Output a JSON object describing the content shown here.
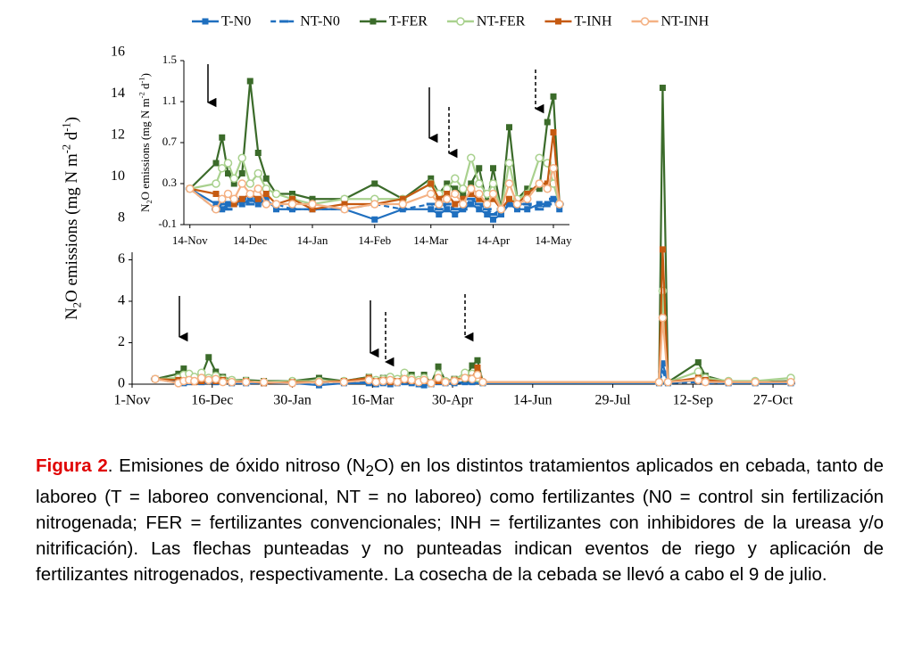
{
  "chart_data": [
    {
      "type": "line",
      "y_label": [
        "N",
        "2",
        "O emissions (mg N m",
        "-2",
        " d",
        "-1",
        ")"
      ],
      "x": [
        13,
        26,
        29,
        32,
        35,
        39,
        43,
        47,
        51,
        56,
        64,
        74,
        90,
        105,
        119,
        133,
        137,
        141,
        145,
        149,
        153,
        157,
        161,
        164,
        168,
        172,
        176,
        181,
        187,
        191,
        194,
        197,
        296,
        298,
        301,
        318,
        322,
        335,
        350,
        370
      ],
      "xlim": [
        0,
        372
      ],
      "xticks": [
        {
          "value": 0,
          "label": "1-Nov"
        },
        {
          "value": 45,
          "label": "16-Dec"
        },
        {
          "value": 90,
          "label": "30-Jan"
        },
        {
          "value": 135,
          "label": "16-Mar"
        },
        {
          "value": 180,
          "label": "30-Apr"
        },
        {
          "value": 225,
          "label": "14-Jun"
        },
        {
          "value": 270,
          "label": "29-Jul"
        },
        {
          "value": 315,
          "label": "12-Sep"
        },
        {
          "value": 360,
          "label": "27-Oct"
        }
      ],
      "ylim": [
        0,
        16
      ],
      "yticks": [
        0,
        2,
        4,
        6,
        8,
        10,
        12,
        14,
        16
      ],
      "series": [
        {
          "name": "T-N0",
          "color": "#1f6fbf",
          "marker": "square",
          "dashed": false,
          "values": [
            0.25,
            0.1,
            0.05,
            0.1,
            0.15,
            0.1,
            0.15,
            0.1,
            0.15,
            0.05,
            0.05,
            0.05,
            0.05,
            -0.05,
            0.05,
            0.05,
            0.0,
            0.05,
            0.0,
            0.05,
            0.1,
            0.05,
            0.0,
            -0.05,
            0.0,
            0.1,
            0.05,
            0.05,
            0.1,
            0.1,
            0.15,
            0.05,
            0.05,
            1.0,
            0.05,
            0.2,
            0.1,
            0.05,
            0.05,
            0.05
          ]
        },
        {
          "name": "NT-N0",
          "color": "#1f6fbf",
          "marker": "dash",
          "dashed": true,
          "values": [
            0.25,
            0.05,
            0.1,
            0.05,
            0.1,
            0.15,
            0.1,
            0.15,
            0.1,
            0.1,
            0.05,
            0.05,
            0.05,
            0.1,
            0.05,
            0.1,
            0.05,
            0.1,
            0.05,
            0.05,
            0.15,
            0.1,
            0.05,
            0.0,
            0.05,
            0.1,
            0.1,
            0.1,
            0.05,
            0.1,
            0.15,
            0.1,
            0.05,
            0.6,
            0.05,
            0.1,
            0.05,
            0.05,
            0.05,
            0.05
          ]
        },
        {
          "name": "T-FER",
          "color": "#3b6b2a",
          "marker": "square",
          "dashed": false,
          "values": [
            0.25,
            0.5,
            0.75,
            0.4,
            0.3,
            0.4,
            1.3,
            0.6,
            0.35,
            0.2,
            0.2,
            0.15,
            0.15,
            0.3,
            0.15,
            0.35,
            0.2,
            0.3,
            0.25,
            0.2,
            0.3,
            0.45,
            0.1,
            0.45,
            0.05,
            0.85,
            0.15,
            0.25,
            0.25,
            0.9,
            1.15,
            0.1,
            0.1,
            14.3,
            0.1,
            1.05,
            0.4,
            0.1,
            0.1,
            0.15
          ]
        },
        {
          "name": "NT-FER",
          "color": "#a9d18e",
          "marker": "circle",
          "dashed": false,
          "values": [
            0.25,
            0.3,
            0.45,
            0.5,
            0.35,
            0.55,
            0.3,
            0.4,
            0.25,
            0.2,
            0.15,
            0.1,
            0.15,
            0.15,
            0.15,
            0.3,
            0.2,
            0.25,
            0.35,
            0.25,
            0.55,
            0.3,
            0.2,
            0.3,
            0.05,
            0.5,
            0.15,
            0.2,
            0.55,
            0.5,
            0.3,
            0.1,
            0.1,
            4.5,
            0.1,
            0.6,
            0.3,
            0.15,
            0.15,
            0.3
          ]
        },
        {
          "name": "T-INH",
          "color": "#c55a11",
          "marker": "square",
          "dashed": false,
          "values": [
            0.25,
            0.2,
            0.15,
            0.2,
            0.1,
            0.15,
            0.2,
            0.15,
            0.2,
            0.1,
            0.15,
            0.05,
            0.1,
            0.1,
            0.15,
            0.3,
            0.15,
            0.2,
            0.1,
            0.15,
            0.2,
            0.15,
            0.1,
            0.15,
            0.05,
            0.15,
            0.1,
            0.2,
            0.3,
            0.3,
            0.8,
            0.1,
            0.1,
            6.5,
            0.1,
            0.3,
            0.2,
            0.1,
            0.1,
            0.1
          ]
        },
        {
          "name": "NT-INH",
          "color": "#f4b183",
          "marker": "circle",
          "dashed": false,
          "values": [
            0.25,
            0.05,
            0.15,
            0.2,
            0.15,
            0.3,
            0.2,
            0.25,
            0.1,
            0.1,
            0.1,
            0.1,
            0.05,
            0.1,
            0.1,
            0.2,
            0.1,
            0.15,
            0.2,
            0.1,
            0.25,
            0.2,
            0.1,
            0.2,
            0.05,
            0.3,
            0.1,
            0.15,
            0.3,
            0.25,
            0.45,
            0.1,
            0.1,
            3.2,
            0.1,
            0.2,
            0.1,
            0.1,
            0.1,
            0.1
          ]
        }
      ]
    },
    {
      "type": "inset",
      "y_label": [
        "N",
        "2",
        "O emissions (mg N m",
        "-2",
        " d",
        "-1",
        ")"
      ],
      "xlim": [
        10,
        202
      ],
      "xticks": [
        {
          "value": 13,
          "label": "14-Nov"
        },
        {
          "value": 43,
          "label": "14-Dec"
        },
        {
          "value": 74,
          "label": "14-Jan"
        },
        {
          "value": 105,
          "label": "14-Feb"
        },
        {
          "value": 133,
          "label": "14-Mar"
        },
        {
          "value": 164,
          "label": "14-Apr"
        },
        {
          "value": 194,
          "label": "14-May"
        }
      ],
      "ylim": [
        -0.1,
        1.5
      ],
      "yticks": [
        -0.1,
        0.3,
        0.7,
        1.1,
        1.5
      ]
    }
  ],
  "caption": {
    "label": "Figura 2",
    "parts": [
      ". Emisiones de óxido nitroso (N",
      "2",
      "O) en los distintos tratamientos aplicados en cebada, tanto de laboreo (T = laboreo convencional, NT = no laboreo) como fertilizantes (N0 = control sin fertilización nitrogenada; FER = fertilizantes convencionales; INH = fertilizantes con inhibidores de la ureasa y/o nitrificación). Las flechas punteadas y no punteadas indican eventos de riego y aplicación de fertilizantes nitrogenados, respectivamente. La cosecha de la cebada se llevó a cabo el 9 de julio."
    ]
  }
}
